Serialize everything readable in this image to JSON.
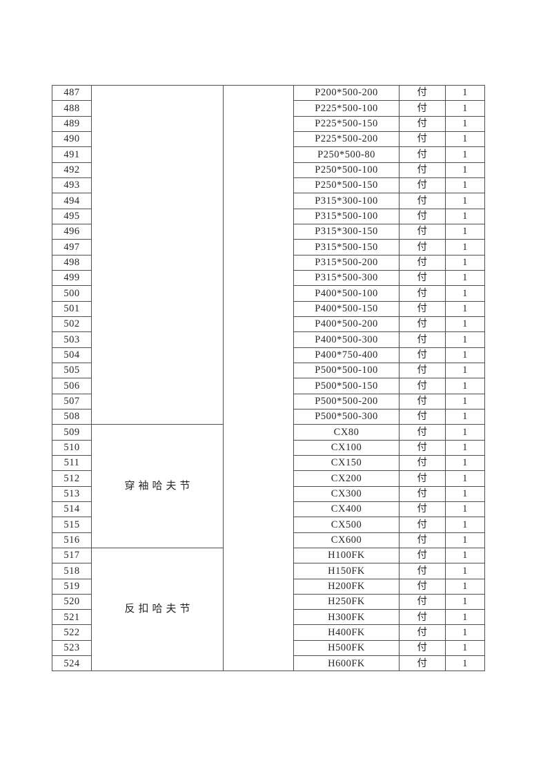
{
  "page": {
    "background_color": "#ffffff",
    "text_color": "#262626",
    "table_border_color": "#4d4d4d"
  },
  "table": {
    "unit_label": "付",
    "qty_value": "1",
    "categories": [
      {
        "label": "",
        "start": 487,
        "end": 508
      },
      {
        "label": "穿袖哈夫节",
        "start": 509,
        "end": 516
      },
      {
        "label": "反扣哈夫节",
        "start": 517,
        "end": 524
      }
    ],
    "rows": [
      {
        "no": "487",
        "model": "P200*500-200",
        "unit": "付",
        "qty": "1"
      },
      {
        "no": "488",
        "model": "P225*500-100",
        "unit": "付",
        "qty": "1"
      },
      {
        "no": "489",
        "model": "P225*500-150",
        "unit": "付",
        "qty": "1"
      },
      {
        "no": "490",
        "model": "P225*500-200",
        "unit": "付",
        "qty": "1"
      },
      {
        "no": "491",
        "model": "P250*500-80",
        "unit": "付",
        "qty": "1"
      },
      {
        "no": "492",
        "model": "P250*500-100",
        "unit": "付",
        "qty": "1"
      },
      {
        "no": "493",
        "model": "P250*500-150",
        "unit": "付",
        "qty": "1"
      },
      {
        "no": "494",
        "model": "P315*300-100",
        "unit": "付",
        "qty": "1"
      },
      {
        "no": "495",
        "model": "P315*500-100",
        "unit": "付",
        "qty": "1"
      },
      {
        "no": "496",
        "model": "P315*300-150",
        "unit": "付",
        "qty": "1"
      },
      {
        "no": "497",
        "model": "P315*500-150",
        "unit": "付",
        "qty": "1"
      },
      {
        "no": "498",
        "model": "P315*500-200",
        "unit": "付",
        "qty": "1"
      },
      {
        "no": "499",
        "model": "P315*500-300",
        "unit": "付",
        "qty": "1"
      },
      {
        "no": "500",
        "model": "P400*500-100",
        "unit": "付",
        "qty": "1"
      },
      {
        "no": "501",
        "model": "P400*500-150",
        "unit": "付",
        "qty": "1"
      },
      {
        "no": "502",
        "model": "P400*500-200",
        "unit": "付",
        "qty": "1"
      },
      {
        "no": "503",
        "model": "P400*500-300",
        "unit": "付",
        "qty": "1"
      },
      {
        "no": "504",
        "model": "P400*750-400",
        "unit": "付",
        "qty": "1"
      },
      {
        "no": "505",
        "model": "P500*500-100",
        "unit": "付",
        "qty": "1"
      },
      {
        "no": "506",
        "model": "P500*500-150",
        "unit": "付",
        "qty": "1"
      },
      {
        "no": "507",
        "model": "P500*500-200",
        "unit": "付",
        "qty": "1"
      },
      {
        "no": "508",
        "model": "P500*500-300",
        "unit": "付",
        "qty": "1"
      },
      {
        "no": "509",
        "model": "CX80",
        "unit": "付",
        "qty": "1"
      },
      {
        "no": "510",
        "model": "CX100",
        "unit": "付",
        "qty": "1"
      },
      {
        "no": "511",
        "model": "CX150",
        "unit": "付",
        "qty": "1"
      },
      {
        "no": "512",
        "model": "CX200",
        "unit": "付",
        "qty": "1"
      },
      {
        "no": "513",
        "model": "CX300",
        "unit": "付",
        "qty": "1"
      },
      {
        "no": "514",
        "model": "CX400",
        "unit": "付",
        "qty": "1"
      },
      {
        "no": "515",
        "model": "CX500",
        "unit": "付",
        "qty": "1"
      },
      {
        "no": "516",
        "model": "CX600",
        "unit": "付",
        "qty": "1"
      },
      {
        "no": "517",
        "model": "H100FK",
        "unit": "付",
        "qty": "1"
      },
      {
        "no": "518",
        "model": "H150FK",
        "unit": "付",
        "qty": "1"
      },
      {
        "no": "519",
        "model": "H200FK",
        "unit": "付",
        "qty": "1"
      },
      {
        "no": "520",
        "model": "H250FK",
        "unit": "付",
        "qty": "1"
      },
      {
        "no": "521",
        "model": "H300FK",
        "unit": "付",
        "qty": "1"
      },
      {
        "no": "522",
        "model": "H400FK",
        "unit": "付",
        "qty": "1"
      },
      {
        "no": "523",
        "model": "H500FK",
        "unit": "付",
        "qty": "1"
      },
      {
        "no": "524",
        "model": "H600FK",
        "unit": "付",
        "qty": "1"
      }
    ]
  }
}
